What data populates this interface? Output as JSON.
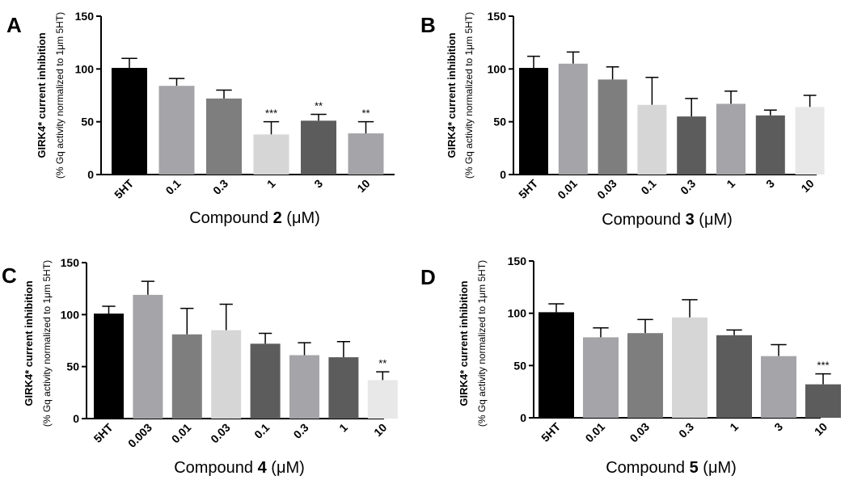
{
  "figure": {
    "ylabel_main": "GIRK4* current inhibition",
    "ylabel_sub": "(% Gq activity normalized to 1μm 5HT)"
  },
  "chart_data": [
    {
      "type": "bar",
      "panel": "A",
      "compound": "2",
      "xlabel_pre": "Compound",
      "xlabel_post": "(μM)",
      "ylim": [
        0,
        150
      ],
      "yticks": [
        0,
        50,
        100,
        150
      ],
      "categories": [
        "5HT",
        "0.1",
        "0.3",
        "1",
        "3",
        "10"
      ],
      "values": [
        101,
        84,
        72,
        38,
        51,
        39
      ],
      "errors": [
        9,
        7,
        8,
        12,
        6,
        11
      ],
      "colors": [
        "#000000",
        "#a5a4a8",
        "#7e7e7e",
        "#d6d6d6",
        "#5c5c5c",
        "#a5a4a8"
      ],
      "annotations": [
        "",
        "",
        "",
        "***",
        "**",
        "**"
      ]
    },
    {
      "type": "bar",
      "panel": "B",
      "compound": "3",
      "xlabel_pre": "Compound",
      "xlabel_post": "(μM)",
      "ylim": [
        0,
        150
      ],
      "yticks": [
        0,
        50,
        100,
        150
      ],
      "categories": [
        "5HT",
        "0.01",
        "0.03",
        "0.1",
        "0.3",
        "1",
        "3",
        "10"
      ],
      "values": [
        101,
        105,
        90,
        66,
        55,
        67,
        56,
        64
      ],
      "errors": [
        11,
        11,
        12,
        26,
        17,
        12,
        5,
        11
      ],
      "colors": [
        "#000000",
        "#a5a4a8",
        "#7e7e7e",
        "#d6d6d6",
        "#5c5c5c",
        "#a5a4a8",
        "#5c5c5c",
        "#e8e8e8"
      ],
      "annotations": [
        "",
        "",
        "",
        "",
        "",
        "",
        "",
        ""
      ]
    },
    {
      "type": "bar",
      "panel": "C",
      "compound": "4",
      "xlabel_pre": "Compound",
      "xlabel_post": "(μM)",
      "ylim": [
        0,
        150
      ],
      "yticks": [
        0,
        50,
        100,
        150
      ],
      "categories": [
        "5HT",
        "0.003",
        "0.01",
        "0.03",
        "0.1",
        "0.3",
        "1",
        "10"
      ],
      "values": [
        101,
        119,
        81,
        85,
        72,
        61,
        59,
        37
      ],
      "errors": [
        7,
        13,
        25,
        25,
        10,
        12,
        15,
        8
      ],
      "colors": [
        "#000000",
        "#a5a4a8",
        "#7e7e7e",
        "#d6d6d6",
        "#5c5c5c",
        "#a5a4a8",
        "#5c5c5c",
        "#e8e8e8"
      ],
      "annotations": [
        "",
        "",
        "",
        "",
        "",
        "",
        "",
        "**"
      ]
    },
    {
      "type": "bar",
      "panel": "D",
      "compound": "5",
      "xlabel_pre": "Compound",
      "xlabel_post": "(μM)",
      "ylim": [
        0,
        150
      ],
      "yticks": [
        0,
        50,
        100,
        150
      ],
      "categories": [
        "5HT",
        "0.01",
        "0.03",
        "0.3",
        "1",
        "3",
        "10"
      ],
      "values": [
        101,
        77,
        81,
        96,
        79,
        59,
        32
      ],
      "errors": [
        8,
        9,
        13,
        17,
        5,
        11,
        10
      ],
      "colors": [
        "#000000",
        "#a5a4a8",
        "#7e7e7e",
        "#d6d6d6",
        "#5c5c5c",
        "#a5a4a8",
        "#5c5c5c"
      ],
      "annotations": [
        "",
        "",
        "",
        "",
        "",
        "",
        "***"
      ]
    }
  ]
}
